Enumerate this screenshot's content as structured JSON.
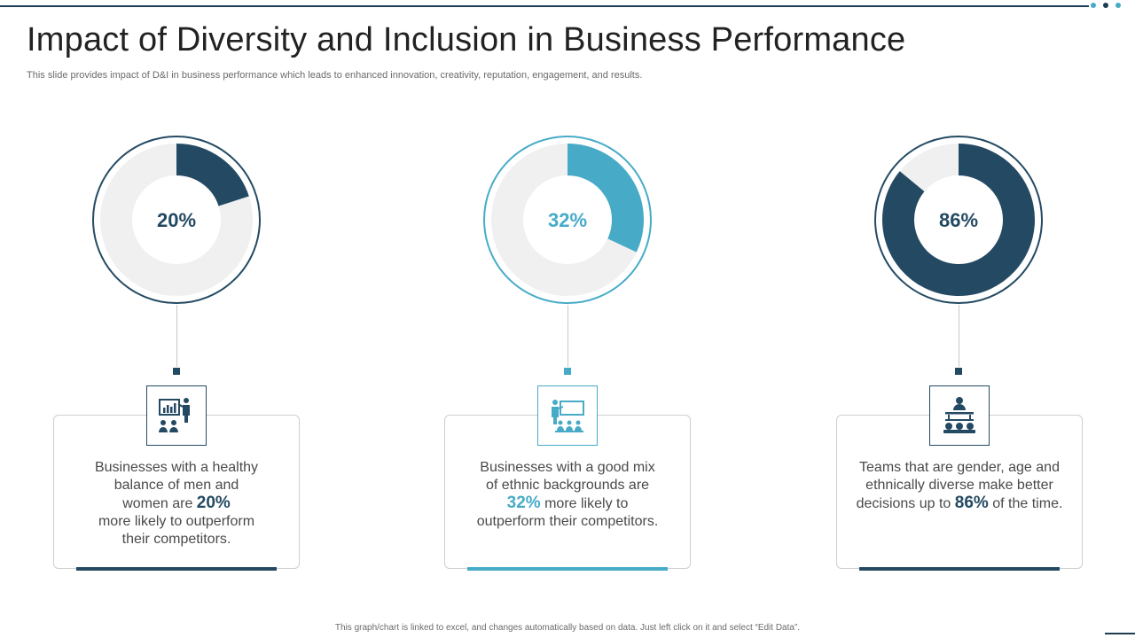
{
  "title": "Impact of Diversity and Inclusion in Business Performance",
  "subtitle": "This slide provides impact of D&I in business performance which leads to enhanced innovation, creativity, reputation, engagement, and results.",
  "footer": "This graph/chart is linked to excel, and changes automatically based on data. Just left click on it and select “Edit Data”.",
  "colors": {
    "dark": "#244a63",
    "teal": "#47abc8",
    "track": "#f0f0f0"
  },
  "chart_data": [
    {
      "type": "pie",
      "values": [
        20,
        80
      ],
      "center_label": "20%",
      "accent": "#244a63"
    },
    {
      "type": "pie",
      "values": [
        32,
        68
      ],
      "center_label": "32%",
      "accent": "#47abc8"
    },
    {
      "type": "pie",
      "values": [
        86,
        14
      ],
      "center_label": "86%",
      "accent": "#244a63"
    }
  ],
  "cards": [
    {
      "icon": "presentation-chart-audience-icon",
      "line1": "Businesses with a healthy",
      "line2": "balance of men and",
      "line3_pre": "women are ",
      "highlight": "20%",
      "line3_post": "",
      "line4": "more likely to outperform",
      "line5": "their competitors."
    },
    {
      "icon": "presenter-whiteboard-icon",
      "line1": "Businesses with a good mix",
      "line2": "of ethnic backgrounds are",
      "line3_pre": "",
      "highlight": "32%",
      "line3_post": " more likely to",
      "line4": "outperform their competitors.",
      "line5": ""
    },
    {
      "icon": "team-meeting-icon",
      "line1": "Teams that are gender, age and",
      "line2": "ethnically  diverse make better",
      "line3_pre": "decisions up to ",
      "highlight": "86%",
      "line3_post": " of the time.",
      "line4": "",
      "line5": ""
    }
  ]
}
